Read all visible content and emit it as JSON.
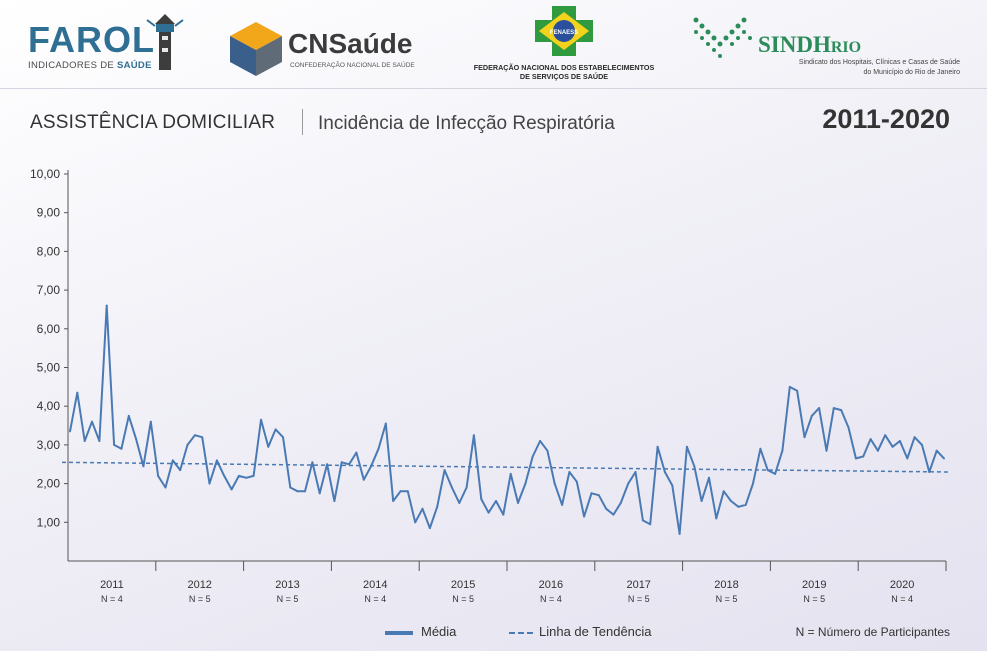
{
  "logos": {
    "farol_title": "FAROL",
    "farol_sub_a": "INDICADORES DE ",
    "farol_sub_b": "SAÚDE",
    "cns_title": "CNSaúde",
    "cns_sub": "CONFEDERAÇÃO NACIONAL DE SAÚDE",
    "fenaess_badge": "FENAESS",
    "fenaess_line1": "FEDERAÇÃO NACIONAL DOS ESTABELECIMENTOS",
    "fenaess_line2": "DE SERVIÇOS DE SAÚDE",
    "sindhrio_a": "SINDH",
    "sindhrio_b": "RIO",
    "sindhrio_line1": "Sindicato dos Hospitais, Clínicas e Casas de Saúde",
    "sindhrio_line2": "do Município do Rio de Janeiro"
  },
  "header": {
    "section": "ASSISTÊNCIA DOMICILIAR",
    "indicator": "Incidência de Infecção Respiratória",
    "period": "2011-2020"
  },
  "legend": {
    "media": "Média",
    "trend": "Linha de Tendência",
    "note": "N = Número de Participantes"
  },
  "colors": {
    "series": "#4a7ab4",
    "axis": "#555555"
  },
  "chart_data": {
    "type": "line",
    "ylim": [
      0,
      10
    ],
    "yticks": [
      "1,00",
      "2,00",
      "3,00",
      "4,00",
      "5,00",
      "6,00",
      "7,00",
      "8,00",
      "9,00",
      "10,00"
    ],
    "grid": false,
    "years": [
      {
        "label": "2011",
        "n": "N = 4"
      },
      {
        "label": "2012",
        "n": "N = 5"
      },
      {
        "label": "2013",
        "n": "N = 5"
      },
      {
        "label": "2014",
        "n": "N = 4"
      },
      {
        "label": "2015",
        "n": "N = 5"
      },
      {
        "label": "2016",
        "n": "N = 4"
      },
      {
        "label": "2017",
        "n": "N = 5"
      },
      {
        "label": "2018",
        "n": "N = 5"
      },
      {
        "label": "2019",
        "n": "N = 5"
      },
      {
        "label": "2020",
        "n": "N = 4"
      }
    ],
    "series": [
      {
        "values": [
          3.35,
          4.35,
          3.1,
          3.6,
          3.1,
          6.6,
          3.0,
          2.9,
          3.75,
          3.15,
          2.45,
          3.6,
          2.2,
          1.9,
          2.6,
          2.35,
          3.0,
          3.25,
          3.2,
          2.0,
          2.6,
          2.2,
          1.85,
          2.2,
          2.15,
          2.2,
          3.65,
          2.95,
          3.4,
          3.2,
          1.9,
          1.8,
          1.8,
          2.55,
          1.75,
          2.5,
          1.55,
          2.55,
          2.5,
          2.8,
          2.1,
          2.45,
          2.9,
          3.55,
          1.55,
          1.8,
          1.8,
          1.0,
          1.35,
          0.85,
          1.4,
          2.35,
          1.9,
          1.5,
          1.9,
          3.25,
          1.6,
          1.25,
          1.55,
          1.2,
          2.25,
          1.5,
          2.0,
          2.7,
          3.1,
          2.85,
          2.0,
          1.45,
          2.3,
          2.05,
          1.15,
          1.75,
          1.7,
          1.35,
          1.2,
          1.5,
          2.0,
          2.3,
          1.05,
          0.95,
          2.95,
          2.3,
          1.95,
          0.7,
          2.95,
          2.45,
          1.55,
          2.15,
          1.1,
          1.8,
          1.55,
          1.4,
          1.45,
          2.0,
          2.9,
          2.35,
          2.25,
          2.85,
          4.5,
          4.4,
          3.2,
          3.75,
          3.95,
          2.85,
          3.95,
          3.9,
          3.45,
          2.65,
          2.7,
          3.15,
          2.85,
          3.25,
          2.95,
          3.1,
          2.65,
          3.2,
          3.0,
          2.3,
          2.85,
          2.65
        ]
      }
    ],
    "trend": {
      "start": 2.55,
      "end": 2.3
    }
  }
}
